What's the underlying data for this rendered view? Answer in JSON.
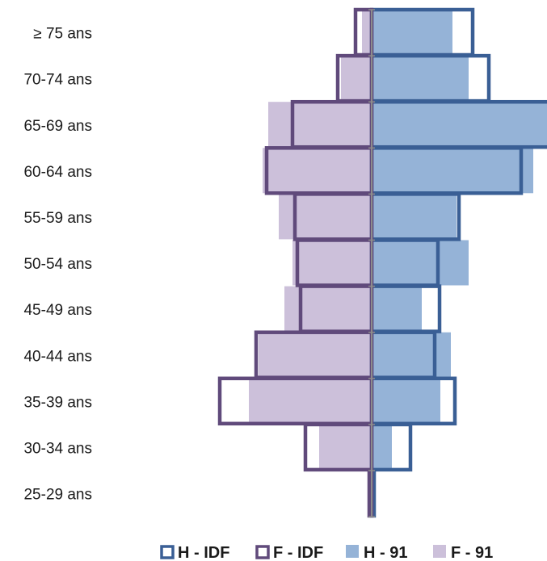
{
  "chart_data": {
    "type": "bar",
    "subtype": "population-pyramid",
    "title": "",
    "xlabel": "",
    "ylabel": "",
    "categories": [
      "≥ 75 ans",
      "70-74 ans",
      "65-69 ans",
      "60-64 ans",
      "55-59 ans",
      "50-54 ans",
      "45-49 ans",
      "40-44 ans",
      "35-39 ans",
      "30-34 ans",
      "25-29 ans"
    ],
    "xlim": [
      -19,
      22
    ],
    "series": [
      {
        "name": "H - IDF",
        "side": "right",
        "style": "outline",
        "color": "#3a5f95",
        "values": [
          12.5,
          14.5,
          22.0,
          18.5,
          10.8,
          8.2,
          8.4,
          7.8,
          10.3,
          4.8,
          0.3
        ]
      },
      {
        "name": "F - IDF",
        "side": "left",
        "style": "outline",
        "color": "#604a7b",
        "values": [
          2.0,
          4.2,
          9.8,
          13.0,
          9.5,
          9.2,
          8.8,
          14.3,
          18.8,
          8.2,
          0.3
        ]
      },
      {
        "name": "H - 91",
        "side": "right",
        "style": "fill",
        "color": "#95b3d7",
        "values": [
          10.0,
          12.0,
          22.0,
          20.0,
          10.5,
          12.0,
          6.2,
          9.8,
          8.5,
          2.5,
          0.5
        ]
      },
      {
        "name": "F - 91",
        "side": "left",
        "style": "fill",
        "color": "#ccc0da",
        "values": [
          1.2,
          3.8,
          12.8,
          13.5,
          11.5,
          9.8,
          10.8,
          14.0,
          15.2,
          6.5,
          0.3
        ]
      }
    ],
    "legend": {
      "placement": "bottom"
    },
    "grid": false
  }
}
